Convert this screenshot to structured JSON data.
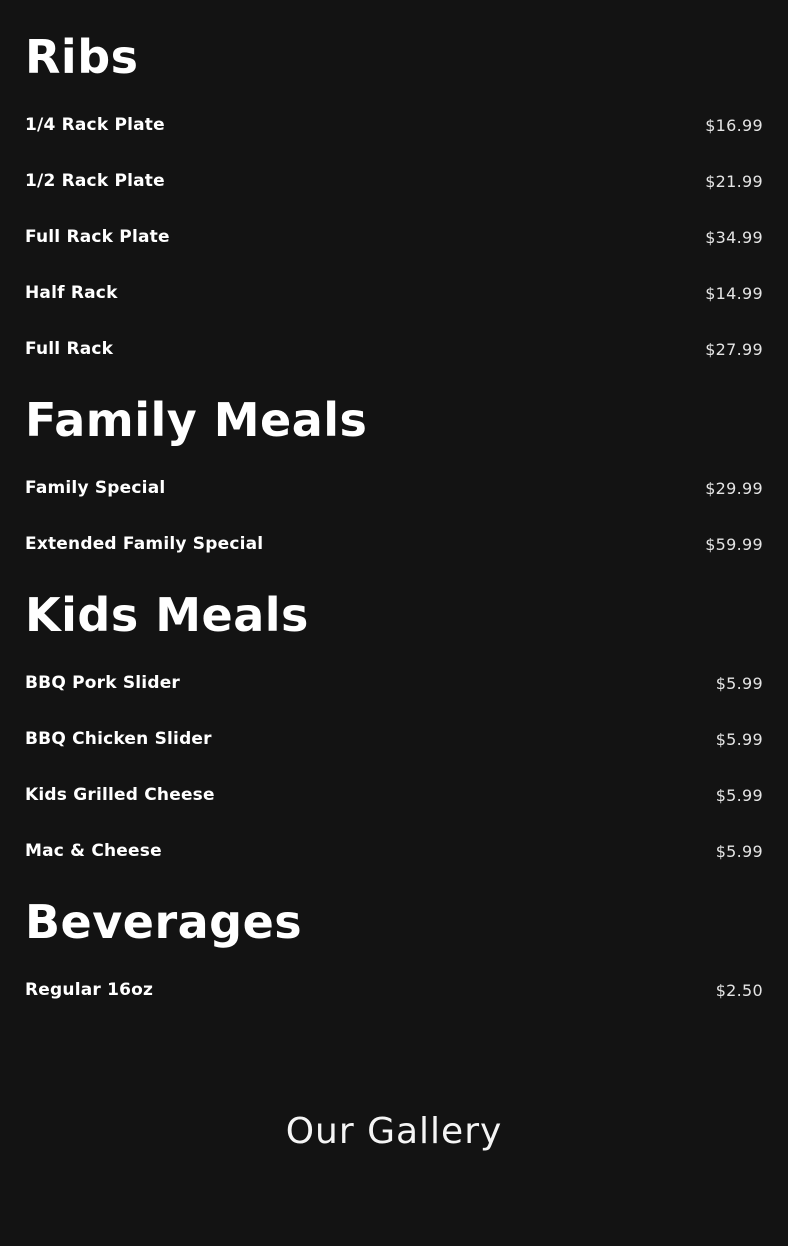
{
  "page": {
    "background_color": "#131313",
    "text_color": "#ffffff",
    "price_color": "#e4e4e4"
  },
  "menu": {
    "sections": [
      {
        "title": "Ribs",
        "items": [
          {
            "name": "1/4 Rack Plate",
            "price": "$16.99"
          },
          {
            "name": "1/2 Rack Plate",
            "price": "$21.99"
          },
          {
            "name": "Full Rack Plate",
            "price": "$34.99"
          },
          {
            "name": "Half Rack",
            "price": "$14.99"
          },
          {
            "name": "Full Rack",
            "price": "$27.99"
          }
        ]
      },
      {
        "title": "Family Meals",
        "items": [
          {
            "name": "Family Special",
            "price": "$29.99"
          },
          {
            "name": "Extended Family Special",
            "price": "$59.99"
          }
        ]
      },
      {
        "title": "Kids Meals",
        "items": [
          {
            "name": "BBQ Pork Slider",
            "price": "$5.99"
          },
          {
            "name": "BBQ Chicken Slider",
            "price": "$5.99"
          },
          {
            "name": "Kids Grilled Cheese",
            "price": "$5.99"
          },
          {
            "name": "Mac & Cheese",
            "price": "$5.99"
          }
        ]
      },
      {
        "title": "Beverages",
        "items": [
          {
            "name": "Regular 16oz",
            "price": "$2.50"
          }
        ]
      }
    ]
  },
  "gallery": {
    "heading": "Our Gallery"
  }
}
